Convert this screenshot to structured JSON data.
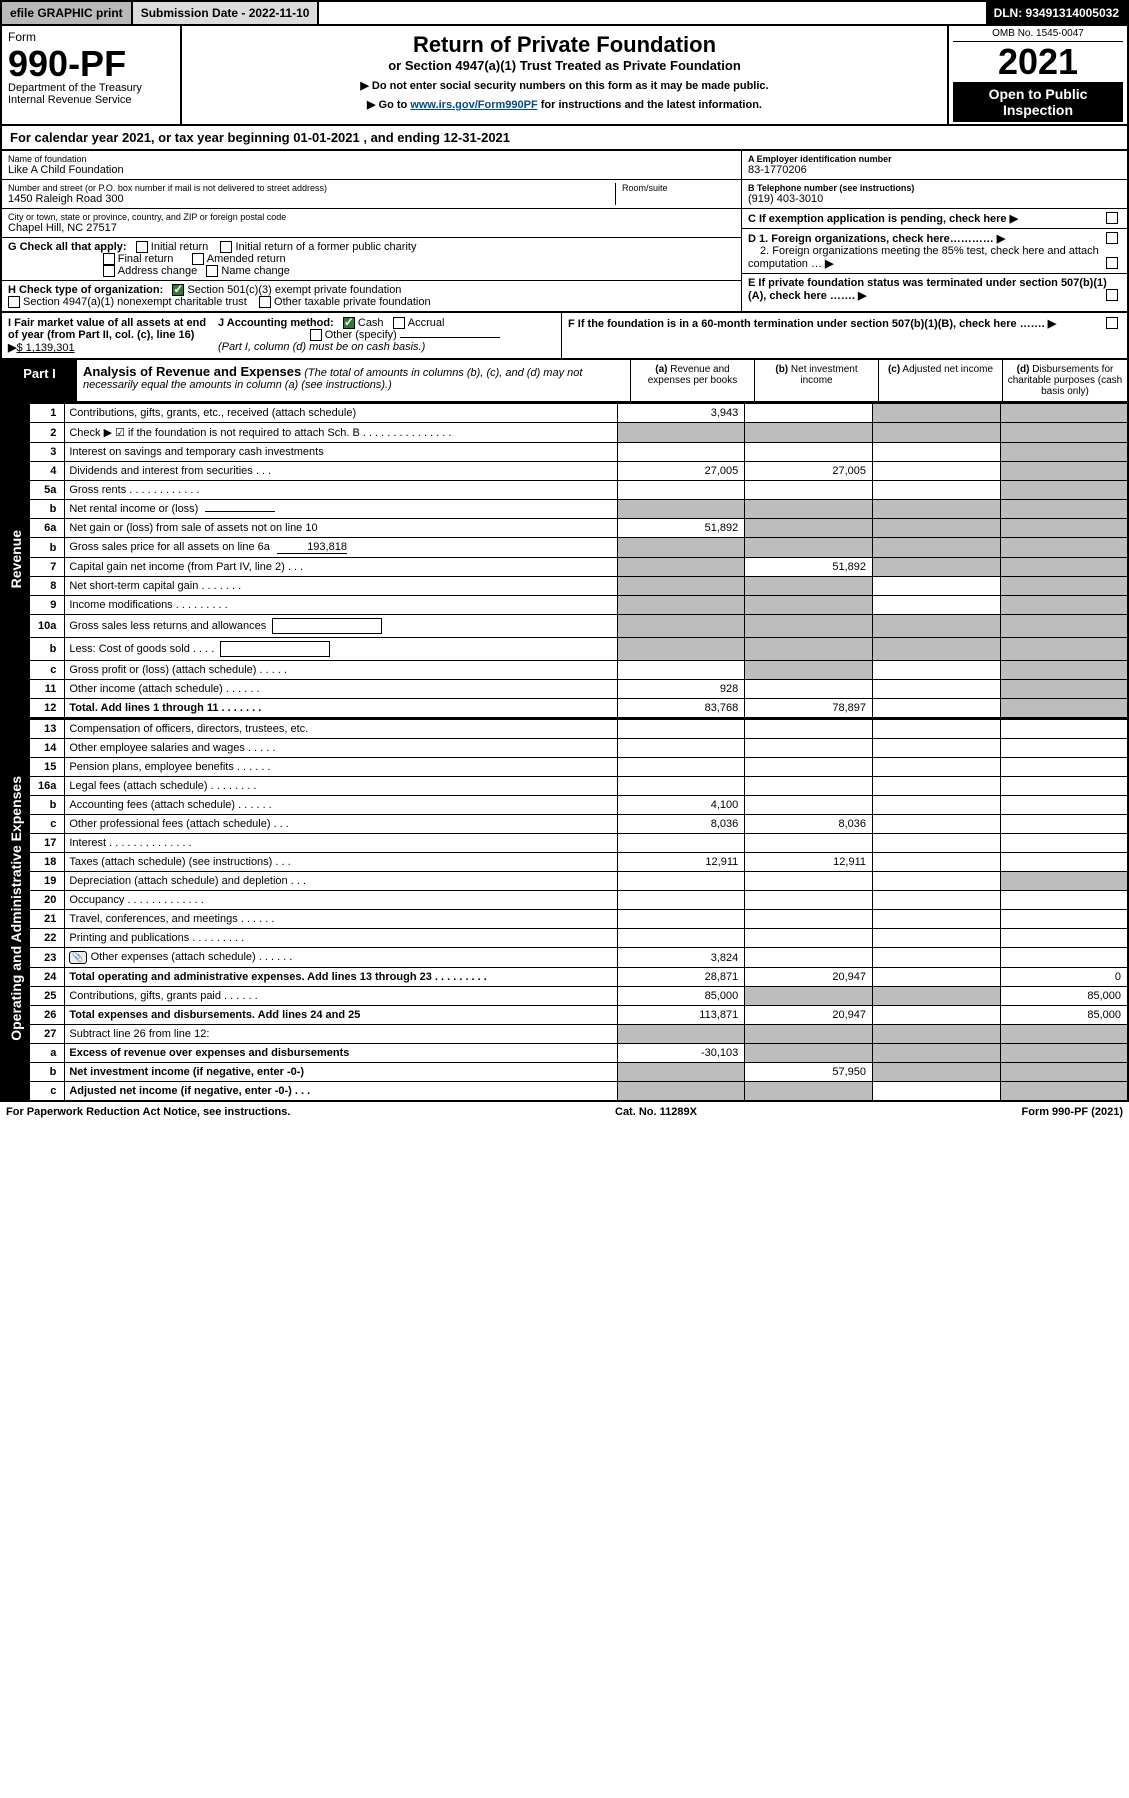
{
  "topbar": {
    "efile": "efile GRAPHIC print",
    "submission": "Submission Date - 2022-11-10",
    "dln": "DLN: 93491314005032"
  },
  "header": {
    "form_label": "Form",
    "form_number": "990-PF",
    "dept": "Department of the Treasury",
    "irs": "Internal Revenue Service",
    "title": "Return of Private Foundation",
    "subtitle": "or Section 4947(a)(1) Trust Treated as Private Foundation",
    "instr1": "▶ Do not enter social security numbers on this form as it may be made public.",
    "instr2_pre": "▶ Go to ",
    "instr2_link": "www.irs.gov/Form990PF",
    "instr2_post": " for instructions and the latest information.",
    "omb": "OMB No. 1545-0047",
    "year": "2021",
    "open": "Open to Public Inspection"
  },
  "cal_year": {
    "pre": "For calendar year 2021, or tax year beginning ",
    "begin": "01-01-2021",
    "mid": " , and ending ",
    "end": "12-31-2021"
  },
  "entity": {
    "name_label": "Name of foundation",
    "name": "Like A Child Foundation",
    "addr_label": "Number and street (or P.O. box number if mail is not delivered to street address)",
    "addr": "1450 Raleigh Road 300",
    "room_label": "Room/suite",
    "city_label": "City or town, state or province, country, and ZIP or foreign postal code",
    "city": "Chapel Hill, NC  27517",
    "ein_label": "A Employer identification number",
    "ein": "83-1770206",
    "phone_label": "B Telephone number (see instructions)",
    "phone": "(919) 403-3010",
    "c_label": "C If exemption application is pending, check here"
  },
  "checks": {
    "g_label": "G Check all that apply:",
    "g_opts": [
      "Initial return",
      "Initial return of a former public charity",
      "Final return",
      "Amended return",
      "Address change",
      "Name change"
    ],
    "h_label": "H Check type of organization:",
    "h_501c3": "Section 501(c)(3) exempt private foundation",
    "h_4947": "Section 4947(a)(1) nonexempt charitable trust",
    "h_other": "Other taxable private foundation",
    "d1": "D 1. Foreign organizations, check here…………",
    "d2": "2. Foreign organizations meeting the 85% test, check here and attach computation …",
    "e": "E If private foundation status was terminated under section 507(b)(1)(A), check here …….",
    "f": "F If the foundation is in a 60-month termination under section 507(b)(1)(B), check here …….",
    "i_label": "I Fair market value of all assets at end of year (from Part II, col. (c), line 16)",
    "i_val": "$  1,139,301",
    "j_label": "J Accounting method:",
    "j_cash": "Cash",
    "j_accrual": "Accrual",
    "j_other": "Other (specify)",
    "j_note": "(Part I, column (d) must be on cash basis.)"
  },
  "part1": {
    "tag": "Part I",
    "title": "Analysis of Revenue and Expenses",
    "note": "(The total of amounts in columns (b), (c), and (d) may not necessarily equal the amounts in column (a) (see instructions).)",
    "col_labels": {
      "a": "(a) Revenue and expenses per books",
      "b": "(b) Net investment income",
      "c": "(c) Adjusted net income",
      "d": "(d) Disbursements for charitable purposes (cash basis only)"
    }
  },
  "side_labels": {
    "rev": "Revenue",
    "exp": "Operating and Administrative Expenses"
  },
  "rows": [
    {
      "n": "1",
      "desc": "Contributions, gifts, grants, etc., received (attach schedule)",
      "a": "3,943",
      "b": "",
      "c": "",
      "d": "",
      "c_grey": true,
      "d_grey": true
    },
    {
      "n": "2",
      "desc": "Check ▶ ☑ if the foundation is not required to attach Sch. B    .   .   .   .   .   .   .   .   .   .   .   .   .   .   .",
      "a_grey": true,
      "b_grey": true,
      "c_grey": true,
      "d_grey": true
    },
    {
      "n": "3",
      "desc": "Interest on savings and temporary cash investments",
      "a": "",
      "b": "",
      "c": "",
      "d_grey": true
    },
    {
      "n": "4",
      "desc": "Dividends and interest from securities   .   .   .",
      "a": "27,005",
      "b": "27,005",
      "c": "",
      "d_grey": true
    },
    {
      "n": "5a",
      "desc": "Gross rents   .   .   .   .   .   .   .   .   .   .   .   .",
      "a": "",
      "b": "",
      "c": "",
      "d_grey": true
    },
    {
      "n": "b",
      "desc": "Net rental income or (loss)",
      "sub": "",
      "a_grey": true,
      "b_grey": true,
      "c_grey": true,
      "d_grey": true
    },
    {
      "n": "6a",
      "desc": "Net gain or (loss) from sale of assets not on line 10",
      "a": "51,892",
      "b_grey": true,
      "c_grey": true,
      "d_grey": true
    },
    {
      "n": "b",
      "desc": "Gross sales price for all assets on line 6a",
      "sub": "193,818",
      "a_grey": true,
      "b_grey": true,
      "c_grey": true,
      "d_grey": true
    },
    {
      "n": "7",
      "desc": "Capital gain net income (from Part IV, line 2)   .   .   .",
      "a_grey": true,
      "b": "51,892",
      "c_grey": true,
      "d_grey": true
    },
    {
      "n": "8",
      "desc": "Net short-term capital gain   .   .   .   .   .   .   .",
      "a_grey": true,
      "b_grey": true,
      "c": "",
      "d_grey": true
    },
    {
      "n": "9",
      "desc": "Income modifications   .   .   .   .   .   .   .   .   .",
      "a_grey": true,
      "b_grey": true,
      "c": "",
      "d_grey": true
    },
    {
      "n": "10a",
      "desc": "Gross sales less returns and allowances",
      "box": true,
      "a_grey": true,
      "b_grey": true,
      "c_grey": true,
      "d_grey": true
    },
    {
      "n": "b",
      "desc": "Less: Cost of goods sold   .   .   .   .",
      "box": true,
      "a_grey": true,
      "b_grey": true,
      "c_grey": true,
      "d_grey": true
    },
    {
      "n": "c",
      "desc": "Gross profit or (loss) (attach schedule)   .   .   .   .   .",
      "a": "",
      "b_grey": true,
      "c": "",
      "d_grey": true
    },
    {
      "n": "11",
      "desc": "Other income (attach schedule)   .   .   .   .   .   .",
      "a": "928",
      "b": "",
      "c": "",
      "d_grey": true
    },
    {
      "n": "12",
      "desc": "Total. Add lines 1 through 11   .   .   .   .   .   .   .",
      "bold": true,
      "a": "83,768",
      "b": "78,897",
      "c": "",
      "d_grey": true
    }
  ],
  "exp_rows": [
    {
      "n": "13",
      "desc": "Compensation of officers, directors, trustees, etc.",
      "a": "",
      "b": "",
      "c": "",
      "d": ""
    },
    {
      "n": "14",
      "desc": "Other employee salaries and wages   .   .   .   .   .",
      "a": "",
      "b": "",
      "c": "",
      "d": ""
    },
    {
      "n": "15",
      "desc": "Pension plans, employee benefits   .   .   .   .   .   .",
      "a": "",
      "b": "",
      "c": "",
      "d": ""
    },
    {
      "n": "16a",
      "desc": "Legal fees (attach schedule)   .   .   .   .   .   .   .   .",
      "a": "",
      "b": "",
      "c": "",
      "d": ""
    },
    {
      "n": "b",
      "desc": "Accounting fees (attach schedule)   .   .   .   .   .   .",
      "a": "4,100",
      "b": "",
      "c": "",
      "d": ""
    },
    {
      "n": "c",
      "desc": "Other professional fees (attach schedule)   .   .   .",
      "a": "8,036",
      "b": "8,036",
      "c": "",
      "d": ""
    },
    {
      "n": "17",
      "desc": "Interest   .   .   .   .   .   .   .   .   .   .   .   .   .   .",
      "a": "",
      "b": "",
      "c": "",
      "d": ""
    },
    {
      "n": "18",
      "desc": "Taxes (attach schedule) (see instructions)   .   .   .",
      "a": "12,911",
      "b": "12,911",
      "c": "",
      "d": ""
    },
    {
      "n": "19",
      "desc": "Depreciation (attach schedule) and depletion   .   .   .",
      "a": "",
      "b": "",
      "c": "",
      "d_grey": true
    },
    {
      "n": "20",
      "desc": "Occupancy   .   .   .   .   .   .   .   .   .   .   .   .   .",
      "a": "",
      "b": "",
      "c": "",
      "d": ""
    },
    {
      "n": "21",
      "desc": "Travel, conferences, and meetings   .   .   .   .   .   .",
      "a": "",
      "b": "",
      "c": "",
      "d": ""
    },
    {
      "n": "22",
      "desc": "Printing and publications   .   .   .   .   .   .   .   .   .",
      "a": "",
      "b": "",
      "c": "",
      "d": ""
    },
    {
      "n": "23",
      "desc": "Other expenses (attach schedule)   .   .   .   .   .   .",
      "icon": true,
      "a": "3,824",
      "b": "",
      "c": "",
      "d": ""
    },
    {
      "n": "24",
      "desc": "Total operating and administrative expenses. Add lines 13 through 23   .   .   .   .   .   .   .   .   .",
      "bold": true,
      "a": "28,871",
      "b": "20,947",
      "c": "",
      "d": "0"
    },
    {
      "n": "25",
      "desc": "Contributions, gifts, grants paid   .   .   .   .   .   .",
      "a": "85,000",
      "b_grey": true,
      "c_grey": true,
      "d": "85,000"
    },
    {
      "n": "26",
      "desc": "Total expenses and disbursements. Add lines 24 and 25",
      "bold": true,
      "a": "113,871",
      "b": "20,947",
      "c": "",
      "d": "85,000"
    },
    {
      "n": "27",
      "desc": "Subtract line 26 from line 12:",
      "a_grey": true,
      "b_grey": true,
      "c_grey": true,
      "d_grey": true
    },
    {
      "n": "a",
      "desc": "Excess of revenue over expenses and disbursements",
      "bold": true,
      "a": "-30,103",
      "b_grey": true,
      "c_grey": true,
      "d_grey": true
    },
    {
      "n": "b",
      "desc": "Net investment income (if negative, enter -0-)",
      "bold": true,
      "a_grey": true,
      "b": "57,950",
      "c_grey": true,
      "d_grey": true
    },
    {
      "n": "c",
      "desc": "Adjusted net income (if negative, enter -0-)   .   .   .",
      "bold": true,
      "a_grey": true,
      "b_grey": true,
      "c": "",
      "d_grey": true
    }
  ],
  "footer": {
    "left": "For Paperwork Reduction Act Notice, see instructions.",
    "mid": "Cat. No. 11289X",
    "right": "Form 990-PF (2021)"
  }
}
